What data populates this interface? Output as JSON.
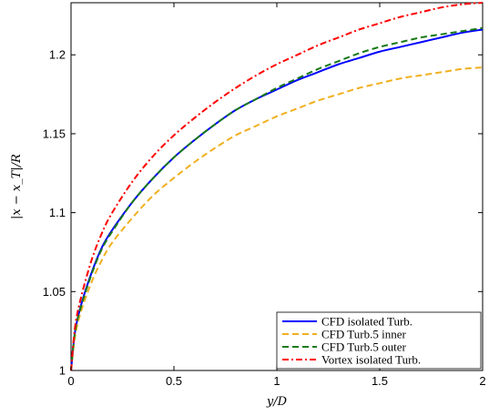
{
  "chart_data": {
    "type": "line",
    "title": "",
    "xlabel": "y/D",
    "ylabel": "|x − x_T|/R",
    "xlim": [
      0,
      2
    ],
    "ylim": [
      1,
      1.233
    ],
    "xticks": [
      {
        "value": 0,
        "label": "0"
      },
      {
        "value": 0.5,
        "label": "0.5"
      },
      {
        "value": 1,
        "label": "1"
      },
      {
        "value": 1.5,
        "label": "1.5"
      },
      {
        "value": 2,
        "label": "2"
      }
    ],
    "yticks": [
      {
        "value": 1,
        "label": "1"
      },
      {
        "value": 1.05,
        "label": "1.05"
      },
      {
        "value": 1.1,
        "label": "1.1"
      },
      {
        "value": 1.15,
        "label": "1.15"
      },
      {
        "value": 1.2,
        "label": "1.2"
      }
    ],
    "grid": false,
    "legend_position": "bottom-right",
    "x": [
      0,
      0.02,
      0.05,
      0.1,
      0.15,
      0.2,
      0.3,
      0.4,
      0.5,
      0.6,
      0.7,
      0.8,
      0.9,
      1.0,
      1.1,
      1.2,
      1.3,
      1.4,
      1.5,
      1.6,
      1.7,
      1.8,
      1.9,
      2.0
    ],
    "series": [
      {
        "name": "CFD isolated Turb.",
        "color": "#0000ff",
        "dash": "solid",
        "values": [
          1.0,
          1.025,
          1.042,
          1.062,
          1.078,
          1.089,
          1.107,
          1.122,
          1.135,
          1.146,
          1.156,
          1.165,
          1.172,
          1.178,
          1.184,
          1.189,
          1.194,
          1.198,
          1.202,
          1.205,
          1.208,
          1.211,
          1.214,
          1.216
        ]
      },
      {
        "name": "CFD Turb.5 inner",
        "color": "#f0b020",
        "dash": "dashed",
        "values": [
          1.0,
          1.022,
          1.038,
          1.056,
          1.07,
          1.081,
          1.097,
          1.111,
          1.122,
          1.132,
          1.141,
          1.149,
          1.155,
          1.161,
          1.166,
          1.171,
          1.175,
          1.179,
          1.182,
          1.185,
          1.187,
          1.189,
          1.191,
          1.192
        ]
      },
      {
        "name": "CFD Turb.5 outer",
        "color": "#1a7a1a",
        "dash": "dashed",
        "values": [
          1.0,
          1.025,
          1.041,
          1.061,
          1.077,
          1.088,
          1.107,
          1.122,
          1.135,
          1.146,
          1.156,
          1.165,
          1.172,
          1.179,
          1.185,
          1.191,
          1.196,
          1.201,
          1.205,
          1.208,
          1.211,
          1.213,
          1.215,
          1.217
        ]
      },
      {
        "name": "Vortex isolated Turb.",
        "color": "#ff0000",
        "dash": "dashdot",
        "values": [
          1.0,
          1.028,
          1.047,
          1.07,
          1.087,
          1.1,
          1.12,
          1.136,
          1.149,
          1.16,
          1.17,
          1.179,
          1.187,
          1.194,
          1.2,
          1.206,
          1.211,
          1.216,
          1.22,
          1.224,
          1.227,
          1.23,
          1.232,
          1.233
        ]
      }
    ]
  }
}
